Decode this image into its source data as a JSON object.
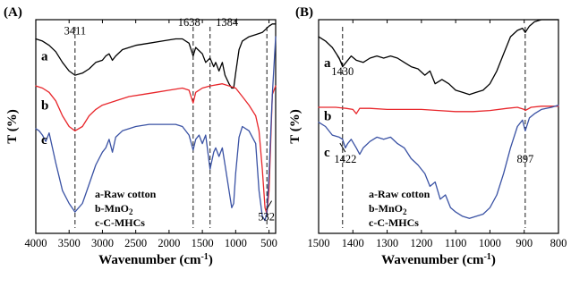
{
  "chart_data": [
    {
      "panel": "(A)",
      "type": "line",
      "xlabel": "Wavenumber (cm",
      "xlabel_sup": "-1",
      "xlabel_close": ")",
      "ylabel": "T (%)",
      "xlim": [
        4000,
        400
      ],
      "x_reversed": true,
      "ylim": [
        0,
        100
      ],
      "ticks": [
        "4000",
        "3500",
        "3000",
        "2500",
        "2000",
        "1500",
        "1000",
        "500"
      ],
      "tick_values": [
        4000,
        3500,
        3000,
        2500,
        2000,
        1500,
        1000,
        500
      ],
      "marker_lines": [
        3411,
        1638,
        1384,
        532
      ],
      "annotations": [
        {
          "text": "3411",
          "x": 3411,
          "y": 93
        },
        {
          "text": "1638",
          "x": 1700,
          "y": 97
        },
        {
          "text": "1384",
          "x": 1130,
          "y": 97
        },
        {
          "text": "532",
          "x": 540,
          "y": 6,
          "arrow": true
        }
      ],
      "legend": {
        "lines": [
          {
            "main": "a-Raw cotton"
          },
          {
            "main": "b-MnO",
            "sub": "2"
          },
          {
            "main": "c-C-MHCs"
          }
        ],
        "placement": "bottom-center"
      },
      "series": [
        {
          "name": "a",
          "color": "#000000",
          "letter_y": 83,
          "points": [
            [
              4000,
              91
            ],
            [
              3900,
              90
            ],
            [
              3800,
              88
            ],
            [
              3700,
              85
            ],
            [
              3600,
              80
            ],
            [
              3500,
              76
            ],
            [
              3411,
              74
            ],
            [
              3300,
              75
            ],
            [
              3200,
              77
            ],
            [
              3100,
              80
            ],
            [
              3000,
              81
            ],
            [
              2950,
              83
            ],
            [
              2900,
              84
            ],
            [
              2850,
              81
            ],
            [
              2800,
              83
            ],
            [
              2700,
              86
            ],
            [
              2500,
              88
            ],
            [
              2300,
              89
            ],
            [
              2100,
              90
            ],
            [
              1900,
              91
            ],
            [
              1800,
              91
            ],
            [
              1700,
              89
            ],
            [
              1638,
              83
            ],
            [
              1600,
              87
            ],
            [
              1500,
              84
            ],
            [
              1450,
              80
            ],
            [
              1384,
              82
            ],
            [
              1330,
              78
            ],
            [
              1300,
              80
            ],
            [
              1250,
              76
            ],
            [
              1200,
              80
            ],
            [
              1160,
              74
            ],
            [
              1100,
              70
            ],
            [
              1060,
              68
            ],
            [
              1030,
              68
            ],
            [
              1000,
              75
            ],
            [
              950,
              86
            ],
            [
              900,
              90
            ],
            [
              800,
              92
            ],
            [
              700,
              93
            ],
            [
              600,
              94
            ],
            [
              500,
              97
            ],
            [
              450,
              98
            ],
            [
              400,
              98
            ]
          ]
        },
        {
          "name": "b",
          "color": "#e8262b",
          "letter_y": 60,
          "points": [
            [
              4000,
              69
            ],
            [
              3900,
              68
            ],
            [
              3800,
              66
            ],
            [
              3700,
              62
            ],
            [
              3600,
              55
            ],
            [
              3500,
              50
            ],
            [
              3411,
              48
            ],
            [
              3300,
              50
            ],
            [
              3200,
              55
            ],
            [
              3100,
              58
            ],
            [
              3000,
              60
            ],
            [
              2800,
              62
            ],
            [
              2600,
              64
            ],
            [
              2400,
              65
            ],
            [
              2200,
              66
            ],
            [
              2000,
              67
            ],
            [
              1800,
              68
            ],
            [
              1700,
              67
            ],
            [
              1638,
              61
            ],
            [
              1600,
              66
            ],
            [
              1500,
              68
            ],
            [
              1384,
              69
            ],
            [
              1200,
              70
            ],
            [
              1000,
              68
            ],
            [
              900,
              64
            ],
            [
              800,
              60
            ],
            [
              700,
              55
            ],
            [
              650,
              48
            ],
            [
              600,
              30
            ],
            [
              560,
              12
            ],
            [
              532,
              9
            ],
            [
              500,
              20
            ],
            [
              450,
              65
            ],
            [
              400,
              69
            ]
          ]
        },
        {
          "name": "c",
          "color": "#3a52a4",
          "letter_y": 44,
          "points": [
            [
              4000,
              49
            ],
            [
              3950,
              48
            ],
            [
              3900,
              46
            ],
            [
              3850,
              43
            ],
            [
              3800,
              47
            ],
            [
              3750,
              40
            ],
            [
              3700,
              33
            ],
            [
              3600,
              20
            ],
            [
              3500,
              14
            ],
            [
              3411,
              10
            ],
            [
              3300,
              14
            ],
            [
              3200,
              23
            ],
            [
              3100,
              32
            ],
            [
              3000,
              38
            ],
            [
              2950,
              40
            ],
            [
              2900,
              44
            ],
            [
              2850,
              38
            ],
            [
              2800,
              45
            ],
            [
              2700,
              48
            ],
            [
              2500,
              50
            ],
            [
              2300,
              51
            ],
            [
              2100,
              51
            ],
            [
              1900,
              51
            ],
            [
              1800,
              50
            ],
            [
              1700,
              46
            ],
            [
              1638,
              39
            ],
            [
              1600,
              44
            ],
            [
              1550,
              46
            ],
            [
              1500,
              42
            ],
            [
              1450,
              46
            ],
            [
              1384,
              30
            ],
            [
              1330,
              38
            ],
            [
              1300,
              40
            ],
            [
              1250,
              36
            ],
            [
              1200,
              40
            ],
            [
              1150,
              30
            ],
            [
              1100,
              20
            ],
            [
              1060,
              12
            ],
            [
              1030,
              14
            ],
            [
              1000,
              28
            ],
            [
              950,
              45
            ],
            [
              900,
              50
            ],
            [
              800,
              48
            ],
            [
              700,
              42
            ],
            [
              650,
              20
            ],
            [
              600,
              8
            ],
            [
              560,
              6
            ],
            [
              532,
              10
            ],
            [
              500,
              28
            ],
            [
              450,
              65
            ],
            [
              400,
              92
            ]
          ]
        }
      ]
    },
    {
      "panel": "(B)",
      "type": "line",
      "xlabel": "Wavenumber (cm",
      "xlabel_sup": "-1",
      "xlabel_close": ")",
      "ylabel": "T (%)",
      "xlim": [
        1500,
        800
      ],
      "x_reversed": true,
      "ylim": [
        0,
        100
      ],
      "ticks": [
        "1500",
        "1400",
        "1300",
        "1200",
        "1100",
        "1000",
        "900",
        "800"
      ],
      "tick_values": [
        1500,
        1400,
        1300,
        1200,
        1100,
        1000,
        900,
        800
      ],
      "marker_lines": [
        1430,
        897
      ],
      "annotations": [
        {
          "text": "1430",
          "x": 1430,
          "y": 74,
          "arrow": true
        },
        {
          "text": "1422",
          "x": 1422,
          "y": 33,
          "arrow": true
        },
        {
          "text": "897",
          "x": 897,
          "y": 33
        }
      ],
      "legend": {
        "lines": [
          {
            "main": "a-Raw cotton"
          },
          {
            "main": "b-MnO",
            "sub": "2"
          },
          {
            "main": "c-C-MHCs"
          }
        ],
        "placement": "bottom-center"
      },
      "series": [
        {
          "name": "a",
          "color": "#000000",
          "letter_y": 80,
          "points": [
            [
              1500,
              92
            ],
            [
              1480,
              90
            ],
            [
              1460,
              87
            ],
            [
              1440,
              82
            ],
            [
              1430,
              78
            ],
            [
              1420,
              80
            ],
            [
              1405,
              83
            ],
            [
              1390,
              81
            ],
            [
              1370,
              80
            ],
            [
              1350,
              82
            ],
            [
              1330,
              83
            ],
            [
              1310,
              82
            ],
            [
              1290,
              83
            ],
            [
              1270,
              82
            ],
            [
              1250,
              80
            ],
            [
              1230,
              78
            ],
            [
              1210,
              77
            ],
            [
              1190,
              74
            ],
            [
              1175,
              76
            ],
            [
              1160,
              70
            ],
            [
              1140,
              72
            ],
            [
              1120,
              70
            ],
            [
              1100,
              67
            ],
            [
              1080,
              66
            ],
            [
              1060,
              65
            ],
            [
              1040,
              66
            ],
            [
              1020,
              67
            ],
            [
              1000,
              70
            ],
            [
              980,
              76
            ],
            [
              960,
              84
            ],
            [
              940,
              92
            ],
            [
              920,
              95
            ],
            [
              905,
              96
            ],
            [
              897,
              94
            ],
            [
              885,
              97
            ],
            [
              870,
              99
            ],
            [
              850,
              100
            ],
            [
              820,
              100
            ],
            [
              800,
              100
            ]
          ]
        },
        {
          "name": "b",
          "color": "#e8262b",
          "letter_y": 55,
          "points": [
            [
              1500,
              59
            ],
            [
              1450,
              59
            ],
            [
              1420,
              58.5
            ],
            [
              1400,
              58
            ],
            [
              1390,
              56
            ],
            [
              1380,
              58.5
            ],
            [
              1350,
              58.5
            ],
            [
              1300,
              58
            ],
            [
              1250,
              58
            ],
            [
              1200,
              58
            ],
            [
              1150,
              57.5
            ],
            [
              1100,
              57
            ],
            [
              1050,
              57
            ],
            [
              1000,
              57.5
            ],
            [
              950,
              58.5
            ],
            [
              920,
              59
            ],
            [
              900,
              58
            ],
            [
              897,
              57.5
            ],
            [
              880,
              59
            ],
            [
              850,
              59.5
            ],
            [
              800,
              59.5
            ]
          ]
        },
        {
          "name": "c",
          "color": "#3a52a4",
          "letter_y": 38,
          "points": [
            [
              1500,
              52
            ],
            [
              1480,
              50
            ],
            [
              1460,
              46
            ],
            [
              1440,
              45
            ],
            [
              1430,
              44
            ],
            [
              1422,
              40
            ],
            [
              1415,
              42
            ],
            [
              1405,
              44
            ],
            [
              1390,
              40
            ],
            [
              1380,
              37
            ],
            [
              1370,
              40
            ],
            [
              1350,
              43
            ],
            [
              1330,
              45
            ],
            [
              1310,
              44
            ],
            [
              1290,
              45
            ],
            [
              1270,
              42
            ],
            [
              1250,
              40
            ],
            [
              1230,
              35
            ],
            [
              1210,
              32
            ],
            [
              1190,
              28
            ],
            [
              1175,
              22
            ],
            [
              1160,
              24
            ],
            [
              1145,
              16
            ],
            [
              1130,
              18
            ],
            [
              1115,
              12
            ],
            [
              1100,
              10
            ],
            [
              1080,
              8
            ],
            [
              1060,
              7
            ],
            [
              1040,
              8
            ],
            [
              1020,
              9
            ],
            [
              1000,
              12
            ],
            [
              980,
              18
            ],
            [
              960,
              28
            ],
            [
              940,
              40
            ],
            [
              920,
              50
            ],
            [
              905,
              53
            ],
            [
              897,
              48
            ],
            [
              885,
              54
            ],
            [
              870,
              56
            ],
            [
              850,
              58
            ],
            [
              820,
              59
            ],
            [
              800,
              60
            ]
          ]
        }
      ]
    }
  ]
}
